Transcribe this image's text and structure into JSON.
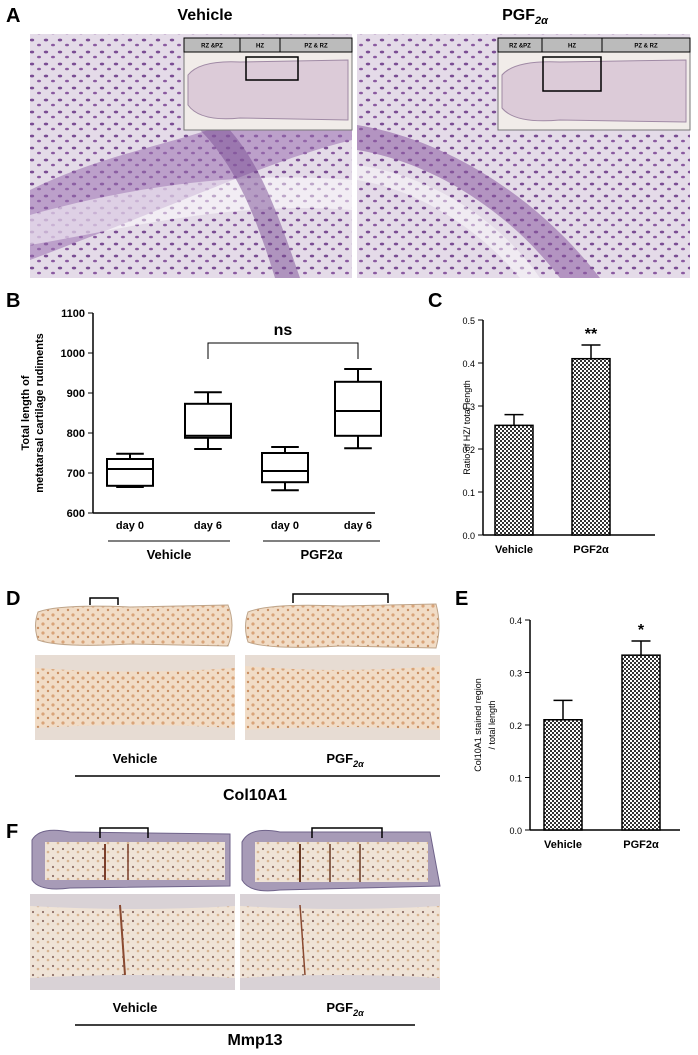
{
  "panel_labels": [
    "A",
    "B",
    "C",
    "D",
    "E",
    "F"
  ],
  "panel_a": {
    "left": {
      "title": "Vehicle",
      "zones": [
        "RZ &PZ",
        "HZ",
        "PZ & RZ"
      ]
    },
    "right": {
      "title": {
        "text": "PGF",
        "sub": "2α"
      },
      "zones": [
        "RZ &PZ",
        "HZ",
        "PZ & RZ"
      ]
    }
  },
  "panel_d": {
    "left": "Vehicle",
    "right": {
      "text": "PGF",
      "sub": "2α"
    },
    "marker": "Col10A1"
  },
  "panel_f": {
    "left": "Vehicle",
    "right": {
      "text": "PGF",
      "sub": "2α"
    },
    "marker": "Mmp13"
  },
  "chart_data": [
    {
      "type": "box",
      "ylabel": [
        "Total length of",
        "metatarsal cartilage rudiments"
      ],
      "categories": [
        "day 0",
        "day 6",
        "day 0",
        "day 6"
      ],
      "groups": [
        "Vehicle",
        "PGF2α"
      ],
      "boxes": [
        {
          "min": 665,
          "q1": 668,
          "median": 710,
          "q3": 735,
          "max": 748
        },
        {
          "min": 760,
          "q1": 788,
          "median": 793,
          "q3": 873,
          "max": 902
        },
        {
          "min": 657,
          "q1": 677,
          "median": 705,
          "q3": 750,
          "max": 765
        },
        {
          "min": 762,
          "q1": 793,
          "median": 855,
          "q3": 928,
          "max": 960
        }
      ],
      "annotation": "ns",
      "ylim": [
        600,
        1100
      ],
      "yticks": [
        600,
        700,
        800,
        900,
        1000,
        1100
      ]
    },
    {
      "type": "bar",
      "ylabel": [
        "Ratio of HZ/ total length"
      ],
      "categories": [
        "Vehicle",
        "PGF2α"
      ],
      "values": [
        0.255,
        0.41
      ],
      "errors": [
        0.025,
        0.032
      ],
      "annotation": "**",
      "ylim": [
        0,
        0.5
      ],
      "yticks": [
        {
          "value": 0,
          "label": "0.0"
        },
        0.1,
        0.2,
        0.3,
        0.4,
        0.5
      ]
    },
    {
      "type": "bar",
      "ylabel": [
        "Col10A1 stained region",
        "/ total length"
      ],
      "categories": [
        "Vehicle",
        "PGF2α"
      ],
      "values": [
        0.21,
        0.333
      ],
      "errors": [
        0.037,
        0.027
      ],
      "annotation": "*",
      "ylim": [
        0,
        0.4
      ],
      "yticks": [
        {
          "value": 0,
          "label": "0.0"
        },
        0.1,
        0.2,
        0.3,
        0.4
      ]
    }
  ]
}
